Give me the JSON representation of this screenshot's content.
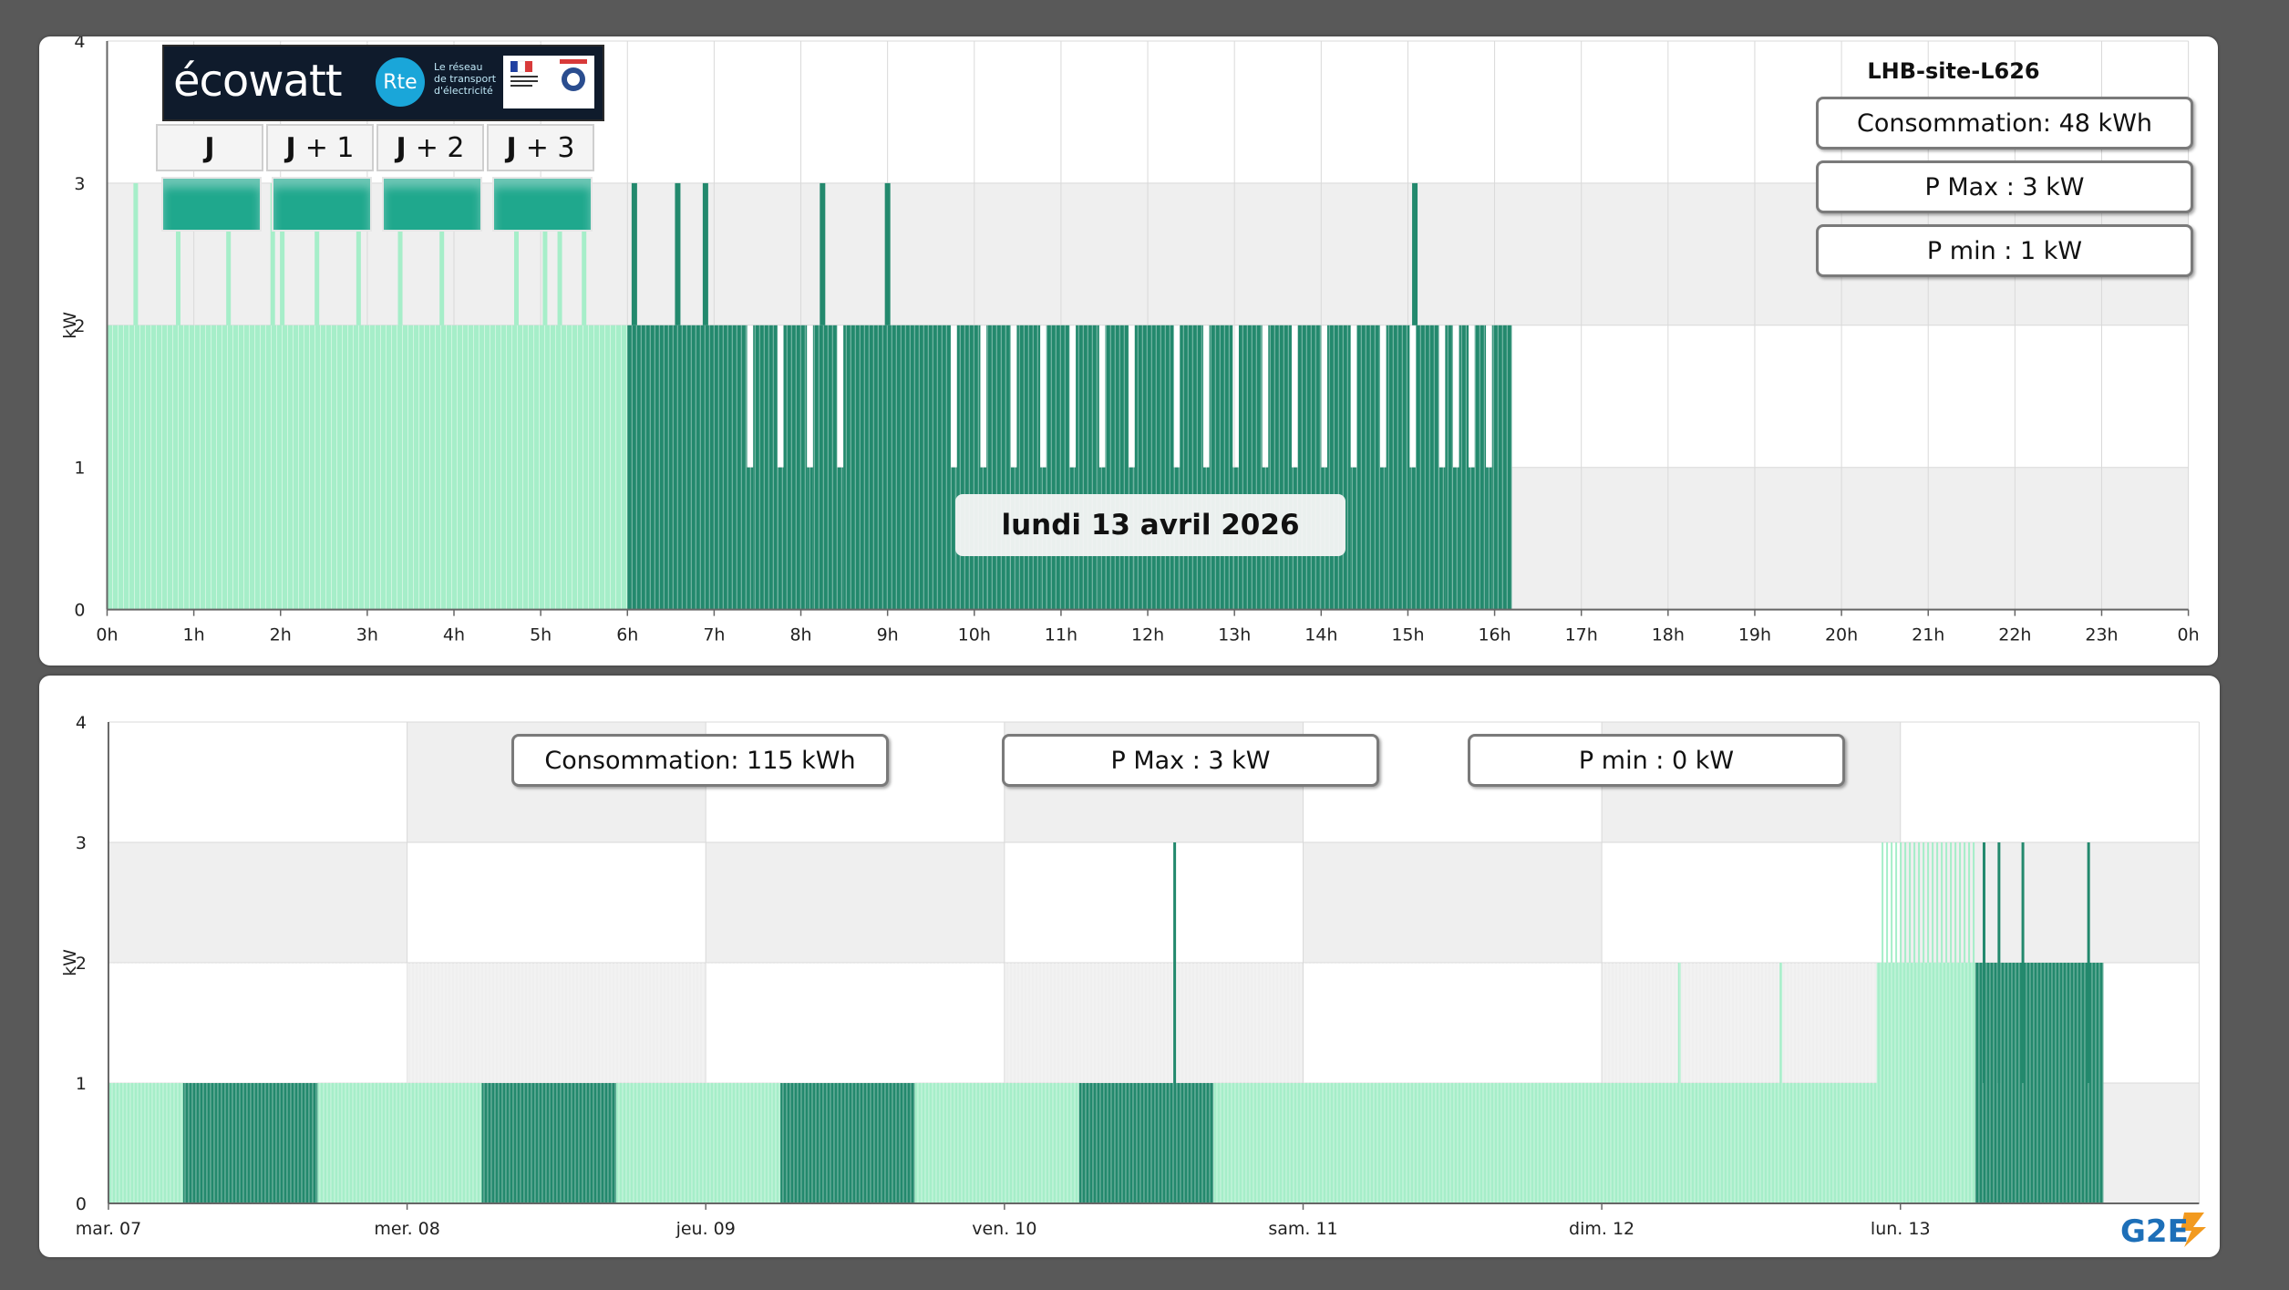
{
  "colors": {
    "light_green": "#a6eec9",
    "dark_green": "#23896d",
    "ecowatt_green": "#1fa88d",
    "grid_band": "#efefef"
  },
  "top_panel": {
    "site_name": "LHB-site-L626",
    "stats": {
      "consumption": "Consommation: 48 kWh",
      "pmax": "P Max :  3 kW",
      "pmin": "P min : 1 kW"
    },
    "date_label": "lundi 13 avril 2026",
    "ecowatt": {
      "logo_text": "écowatt",
      "rte_text": "Rte",
      "rte_caption": [
        "Le réseau",
        "de transport",
        "d'électricité"
      ],
      "days": [
        {
          "prefix": "J",
          "suffix": ""
        },
        {
          "prefix": "J",
          "suffix": "+ 1"
        },
        {
          "prefix": "J",
          "suffix": "+ 2"
        },
        {
          "prefix": "J",
          "suffix": "+ 3"
        }
      ]
    }
  },
  "bottom_panel": {
    "stats": {
      "consumption": "Consommation: 115 kWh",
      "pmax": "P Max :  3 kW",
      "pmin": "P min : 0 kW"
    },
    "logo_text": "G2E"
  },
  "chart_data": [
    {
      "type": "bar",
      "title": "",
      "ylabel": "kW",
      "ylim": [
        0,
        4
      ],
      "yticks": [
        "0",
        "1",
        "2",
        "3",
        "4"
      ],
      "xlim_hours": [
        0,
        24
      ],
      "xticks": [
        "0h",
        "1h",
        "2h",
        "3h",
        "4h",
        "5h",
        "6h",
        "7h",
        "8h",
        "9h",
        "10h",
        "11h",
        "12h",
        "13h",
        "14h",
        "15h",
        "16h",
        "17h",
        "18h",
        "19h",
        "20h",
        "21h",
        "22h",
        "23h",
        "0h"
      ],
      "series": [
        {
          "tariff": "light",
          "segments": [
            {
              "start_h": 0,
              "end_h": 6,
              "value": 2
            }
          ],
          "spikes_h": [
            0.33,
            0.82,
            1.4,
            1.91,
            2.02,
            2.42,
            2.9,
            3.38,
            3.86,
            4.72,
            5.05,
            5.22,
            5.5
          ],
          "spike_value": 3
        },
        {
          "tariff": "dark",
          "segments": [
            {
              "start_h": 6,
              "end_h": 7.38,
              "value": 2
            },
            {
              "start_h": 7.38,
              "end_h": 7.45,
              "value": 1
            },
            {
              "start_h": 7.45,
              "end_h": 7.73,
              "value": 2
            },
            {
              "start_h": 7.73,
              "end_h": 7.8,
              "value": 1
            },
            {
              "start_h": 7.8,
              "end_h": 8.07,
              "value": 2
            },
            {
              "start_h": 8.07,
              "end_h": 8.14,
              "value": 1
            },
            {
              "start_h": 8.14,
              "end_h": 8.42,
              "value": 2
            },
            {
              "start_h": 8.42,
              "end_h": 8.49,
              "value": 1
            },
            {
              "start_h": 8.49,
              "end_h": 9.73,
              "value": 2
            },
            {
              "start_h": 9.73,
              "end_h": 9.8,
              "value": 1
            },
            {
              "start_h": 9.8,
              "end_h": 10.07,
              "value": 2
            },
            {
              "start_h": 10.07,
              "end_h": 10.14,
              "value": 1
            },
            {
              "start_h": 10.14,
              "end_h": 10.42,
              "value": 2
            },
            {
              "start_h": 10.42,
              "end_h": 10.49,
              "value": 1
            },
            {
              "start_h": 10.49,
              "end_h": 10.76,
              "value": 2
            },
            {
              "start_h": 10.76,
              "end_h": 10.83,
              "value": 1
            },
            {
              "start_h": 10.83,
              "end_h": 11.1,
              "value": 2
            },
            {
              "start_h": 11.1,
              "end_h": 11.17,
              "value": 1
            },
            {
              "start_h": 11.17,
              "end_h": 11.44,
              "value": 2
            },
            {
              "start_h": 11.44,
              "end_h": 11.51,
              "value": 1
            },
            {
              "start_h": 11.51,
              "end_h": 11.78,
              "value": 2
            },
            {
              "start_h": 11.78,
              "end_h": 11.85,
              "value": 1
            },
            {
              "start_h": 11.85,
              "end_h": 12.3,
              "value": 2
            },
            {
              "start_h": 12.3,
              "end_h": 12.37,
              "value": 1
            },
            {
              "start_h": 12.37,
              "end_h": 12.64,
              "value": 2
            },
            {
              "start_h": 12.64,
              "end_h": 12.71,
              "value": 1
            },
            {
              "start_h": 12.71,
              "end_h": 12.98,
              "value": 2
            },
            {
              "start_h": 12.98,
              "end_h": 13.05,
              "value": 1
            },
            {
              "start_h": 13.05,
              "end_h": 13.32,
              "value": 2
            },
            {
              "start_h": 13.32,
              "end_h": 13.39,
              "value": 1
            },
            {
              "start_h": 13.39,
              "end_h": 13.66,
              "value": 2
            },
            {
              "start_h": 13.66,
              "end_h": 13.73,
              "value": 1
            },
            {
              "start_h": 13.73,
              "end_h": 14.0,
              "value": 2
            },
            {
              "start_h": 14.0,
              "end_h": 14.07,
              "value": 1
            },
            {
              "start_h": 14.07,
              "end_h": 14.34,
              "value": 2
            },
            {
              "start_h": 14.34,
              "end_h": 14.41,
              "value": 1
            },
            {
              "start_h": 14.41,
              "end_h": 14.68,
              "value": 2
            },
            {
              "start_h": 14.68,
              "end_h": 14.75,
              "value": 1
            },
            {
              "start_h": 14.75,
              "end_h": 15.02,
              "value": 2
            },
            {
              "start_h": 15.02,
              "end_h": 15.09,
              "value": 1
            },
            {
              "start_h": 15.09,
              "end_h": 15.36,
              "value": 2
            },
            {
              "start_h": 15.36,
              "end_h": 15.43,
              "value": 1
            },
            {
              "start_h": 15.43,
              "end_h": 15.52,
              "value": 2
            },
            {
              "start_h": 15.52,
              "end_h": 15.59,
              "value": 1
            },
            {
              "start_h": 15.59,
              "end_h": 15.7,
              "value": 2
            },
            {
              "start_h": 15.7,
              "end_h": 15.77,
              "value": 1
            },
            {
              "start_h": 15.77,
              "end_h": 15.9,
              "value": 2
            },
            {
              "start_h": 15.9,
              "end_h": 15.97,
              "value": 1
            },
            {
              "start_h": 15.97,
              "end_h": 16.2,
              "value": 2
            }
          ],
          "spikes_h": [
            6.08,
            6.58,
            6.9,
            8.25,
            9.0,
            15.08
          ],
          "spike_value": 3
        }
      ]
    },
    {
      "type": "bar",
      "title": "",
      "ylabel": "kW",
      "ylim": [
        0,
        4
      ],
      "yticks": [
        "0",
        "1",
        "2",
        "3",
        "4"
      ],
      "xlim_days": [
        0,
        7
      ],
      "xticks": [
        "mar. 07",
        "mer. 08",
        "jeu. 09",
        "ven. 10",
        "sam. 11",
        "dim. 12",
        "lun. 13"
      ],
      "series": [
        {
          "tariff": "light",
          "segments": [
            {
              "start_d": 0,
              "end_d": 0.25,
              "value": 1
            },
            {
              "start_d": 0.7,
              "end_d": 1.25,
              "value": 1
            },
            {
              "start_d": 1.7,
              "end_d": 2.25,
              "value": 1
            },
            {
              "start_d": 2.7,
              "end_d": 3.25,
              "value": 1
            },
            {
              "start_d": 3.7,
              "end_d": 5.92,
              "value": 1
            },
            {
              "start_d": 5.92,
              "end_d": 6.25,
              "value": 2
            }
          ],
          "spikes_d": [
            5.26,
            5.6
          ],
          "spike_value": 2,
          "upper_band": {
            "start_d": 5.94,
            "end_d": 6.25,
            "value": 3
          }
        },
        {
          "tariff": "dark",
          "segments": [
            {
              "start_d": 0.25,
              "end_d": 0.7,
              "value": 1
            },
            {
              "start_d": 1.25,
              "end_d": 1.7,
              "value": 1
            },
            {
              "start_d": 2.25,
              "end_d": 2.7,
              "value": 1
            },
            {
              "start_d": 3.25,
              "end_d": 3.7,
              "value": 1
            },
            {
              "start_d": 6.25,
              "end_d": 6.68,
              "value": 2
            }
          ],
          "spikes_d": [
            3.57,
            6.28,
            6.33,
            6.41,
            6.63
          ],
          "spike_value": 3
        }
      ]
    }
  ]
}
